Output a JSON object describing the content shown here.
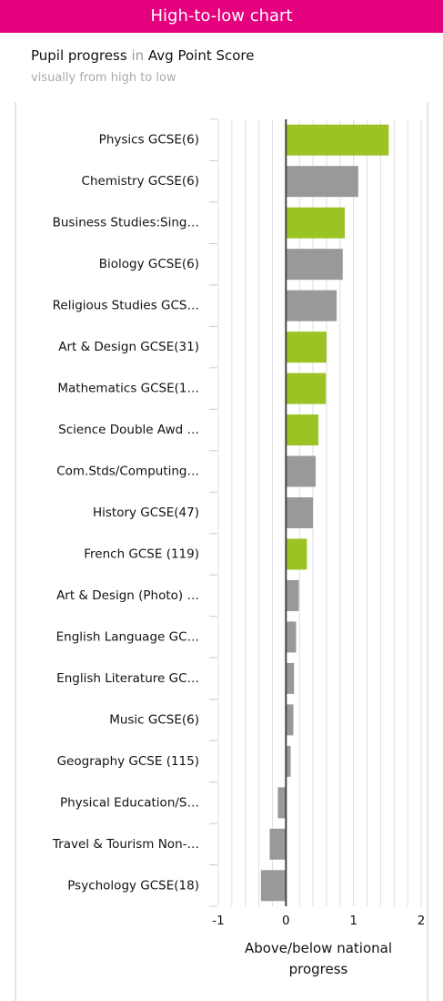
{
  "header": {
    "title": "High-to-low chart",
    "subtitle_parts": [
      "Pupil progress",
      "in",
      "Avg Point Score"
    ],
    "note": "visually from high to low"
  },
  "chart_data": {
    "type": "hbar",
    "xlabel": "Above/below national progress",
    "categories": [
      "Physics GCSE(6)",
      "Chemistry GCSE(6)",
      "Business Studies:Sing…",
      "Biology GCSE(6)",
      "Religious Studies GCS…",
      "Art & Design GCSE(31)",
      "Mathematics GCSE(1…",
      "Science Double Awd …",
      "Com.Stds/Computing…",
      "History GCSE(47)",
      "French GCSE (119)",
      "Art & Design (Photo) …",
      "English Language GC…",
      "English Literature GC…",
      "Music GCSE(6)",
      "Geography GCSE (115)",
      "Physical Education/S…",
      "Travel & Tourism Non-…",
      "Psychology GCSE(18)"
    ],
    "values": [
      1.52,
      1.07,
      0.87,
      0.84,
      0.75,
      0.6,
      0.59,
      0.48,
      0.44,
      0.4,
      0.31,
      0.19,
      0.15,
      0.12,
      0.11,
      0.07,
      -0.12,
      -0.24,
      -0.37
    ],
    "colors": [
      "#9bc324",
      "#999999",
      "#9bc324",
      "#999999",
      "#999999",
      "#9bc324",
      "#9bc324",
      "#9bc324",
      "#999999",
      "#999999",
      "#9bc324",
      "#999999",
      "#999999",
      "#999999",
      "#999999",
      "#999999",
      "#999999",
      "#999999",
      "#999999"
    ],
    "xlim": [
      -1,
      2
    ],
    "xticks": [
      -1,
      0,
      1,
      2
    ],
    "grid": true
  }
}
